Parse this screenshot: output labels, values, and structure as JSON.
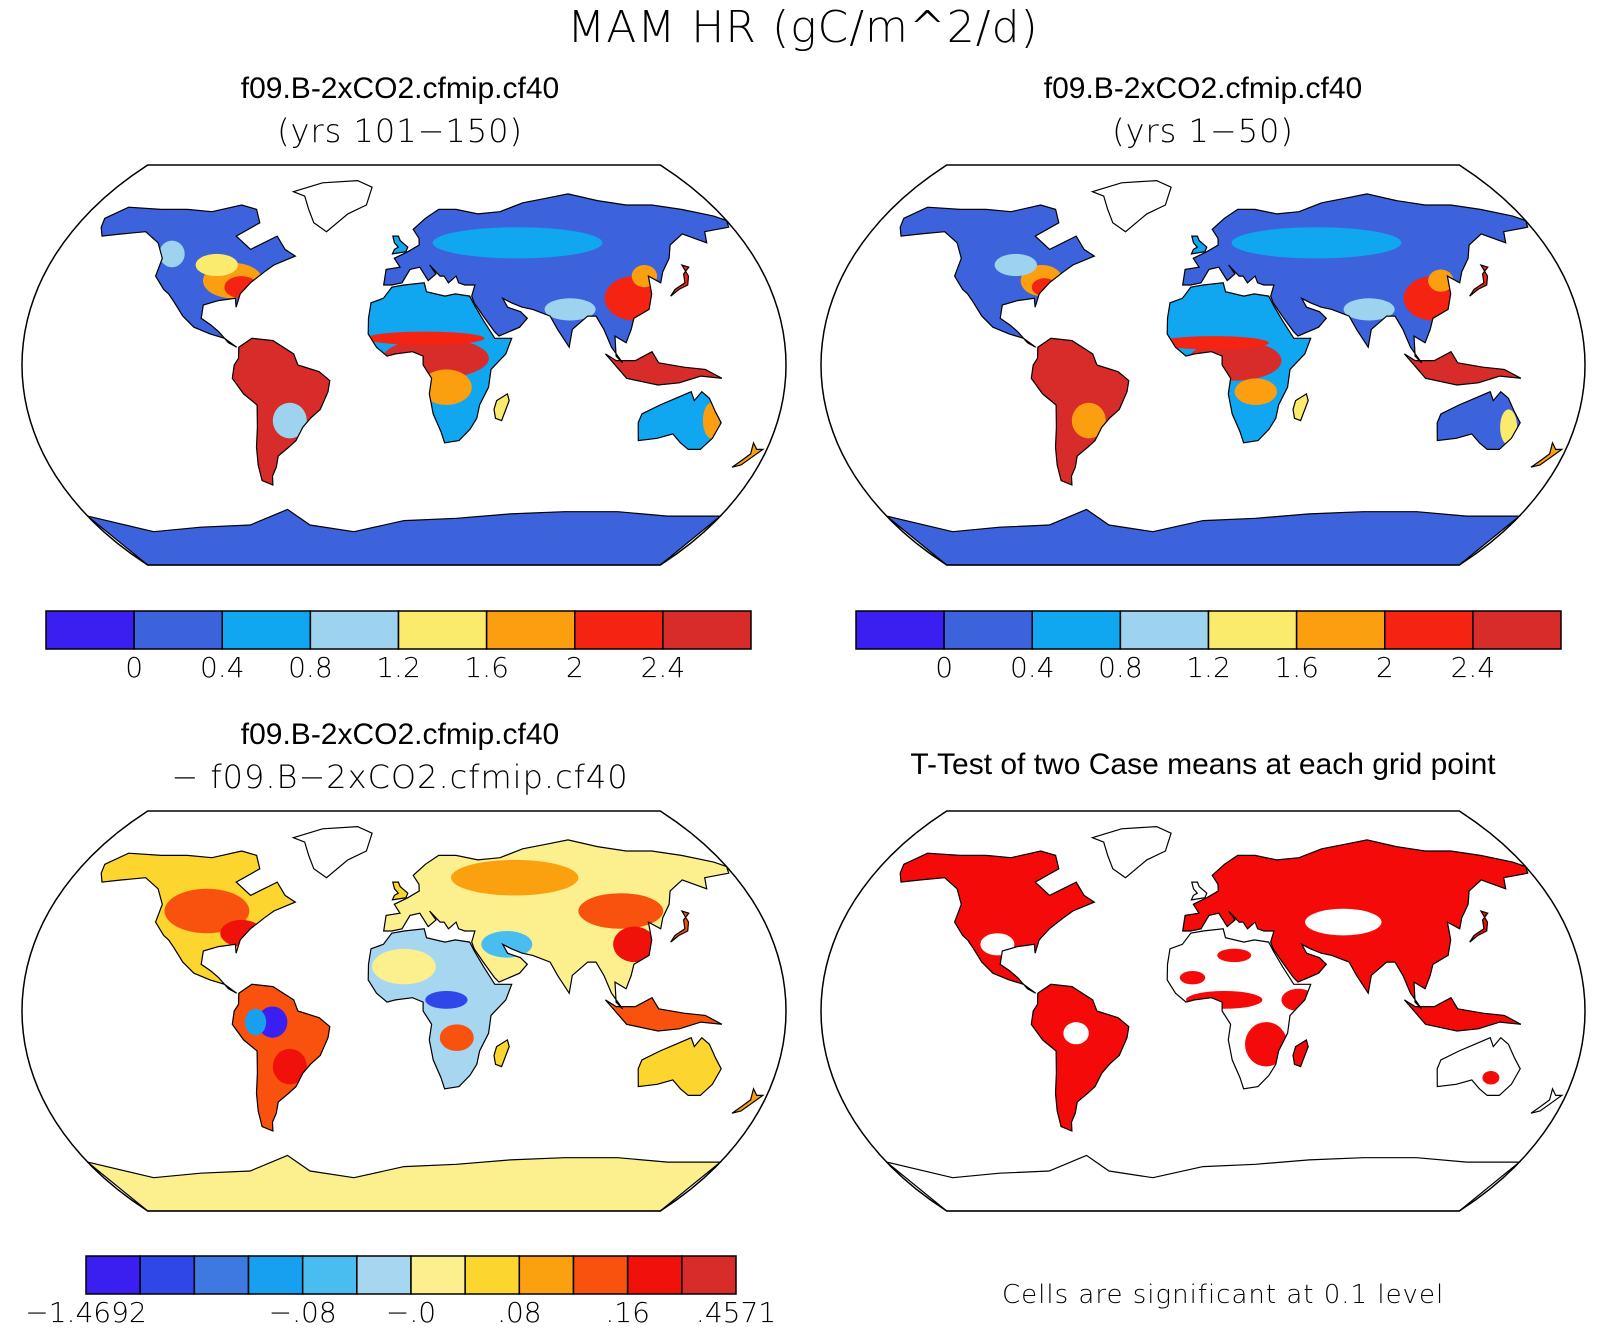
{
  "title": "MAM HR (gC/m^2/d)",
  "panels": {
    "top_left": {
      "title": "f09.B-2xCO2.cfmip.cf40",
      "subtitle": "(yrs 101−150)"
    },
    "top_right": {
      "title": "f09.B-2xCO2.cfmip.cf40",
      "subtitle": "(yrs 1−50)"
    },
    "bottom_left": {
      "title": "f09.B-2xCO2.cfmip.cf40",
      "subtitle": "− f09.B−2xCO2.cfmip.cf40"
    },
    "bottom_right": {
      "title": "T-Test of two Case means at each grid point",
      "note": "Cells are significant at 0.1 level"
    }
  },
  "colorbars": {
    "top": {
      "colors": [
        "#3a1ff0",
        "#3d63dc",
        "#10a6f0",
        "#9dd3ee",
        "#fbeb6c",
        "#fb9e10",
        "#f52312",
        "#d72c2a"
      ],
      "labels": [
        "0",
        "0.4",
        "0.8",
        "1.2",
        "1.6",
        "2",
        "2.4"
      ]
    },
    "bottom": {
      "colors": [
        "#3a1ff0",
        "#2f46e8",
        "#3e79e2",
        "#17a0f0",
        "#49bcf0",
        "#a6d6f0",
        "#fcf08e",
        "#fcd52e",
        "#fba00e",
        "#f9520f",
        "#f0120a",
        "#d72c2a"
      ],
      "labels": [
        "−1.4692",
        "−.08",
        "−.0",
        ".08",
        ".16",
        ".4571"
      ]
    }
  },
  "colors": {
    "ocean": "#ffffff",
    "coast": "#000000",
    "significant": "#f50a0a"
  }
}
